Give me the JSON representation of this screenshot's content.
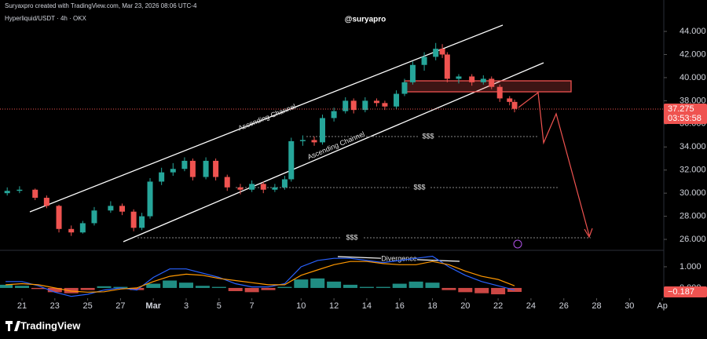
{
  "chart_data": [
    {
      "type": "candlestick",
      "title": "Hyperliquid/USDT · 4h · OKX",
      "subtitle": "Suryaxpro created with TradingView.com, Mar 23, 2026 08:06 UTC-4",
      "watermark": "@suryapro",
      "brand": "TradingView",
      "annotations": [
        "Ascending Channel",
        "Ascending Channel",
        "$$$",
        "$$$",
        "$$$",
        "Divergence"
      ],
      "up_color": "#26a69a",
      "down_color": "#ef5350",
      "x": [
        -0.9,
        -0.15,
        0.8,
        1.5,
        2.25,
        3.0,
        3.7,
        4.4,
        5.4,
        6.1,
        6.8,
        7.3,
        7.8,
        8.5,
        9.2,
        9.9,
        10.4,
        11.2,
        11.8,
        12.5,
        13.3,
        14.0,
        14.7,
        15.4,
        16.0,
        16.4,
        17.1,
        17.8,
        18.3,
        19.0,
        19.7,
        20.2,
        20.9,
        21.6,
        22.1,
        22.8,
        23.3,
        23.8,
        24.5,
        25.2,
        25.6,
        25.9,
        26.6,
        27.4,
        28.1,
        28.6,
        29.1,
        29.7,
        30.0
      ],
      "open": [
        30.0,
        30.2,
        30.3,
        29.6,
        28.9,
        26.9,
        26.6,
        27.4,
        28.5,
        28.9,
        28.4,
        27.0,
        28.0,
        31.0,
        31.8,
        32.1,
        32.8,
        31.4,
        32.8,
        31.4,
        30.5,
        30.3,
        30.8,
        30.3,
        30.5,
        31.2,
        34.5,
        34.6,
        34.4,
        36.5,
        37.1,
        38.0,
        37.2,
        38.0,
        37.8,
        37.5,
        38.6,
        39.6,
        41.1,
        41.8,
        42.5,
        42.0,
        39.9,
        40.1,
        39.6,
        39.9,
        39.2,
        38.2,
        37.9
      ],
      "high": [
        30.5,
        30.6,
        30.4,
        29.8,
        29.0,
        27.2,
        27.6,
        28.8,
        29.3,
        29.1,
        28.6,
        28.3,
        31.3,
        32.2,
        32.6,
        33.1,
        33.0,
        33.1,
        33.0,
        31.6,
        30.8,
        31.1,
        31.0,
        30.8,
        31.5,
        34.8,
        35.0,
        34.9,
        36.8,
        37.4,
        38.3,
        38.2,
        38.3,
        38.2,
        38.0,
        38.9,
        39.9,
        41.4,
        42.2,
        43.0,
        42.9,
        42.2,
        40.3,
        40.3,
        40.2,
        40.1,
        39.4,
        38.4,
        38.1
      ],
      "low": [
        29.8,
        30.0,
        29.4,
        28.7,
        26.6,
        26.3,
        26.5,
        27.2,
        28.3,
        28.1,
        26.7,
        26.8,
        27.8,
        30.7,
        31.5,
        31.9,
        31.1,
        31.2,
        31.1,
        30.2,
        29.9,
        30.1,
        30.0,
        30.1,
        30.3,
        31.0,
        34.1,
        34.1,
        34.2,
        36.2,
        36.9,
        36.9,
        37.0,
        37.5,
        37.2,
        37.3,
        38.4,
        39.4,
        40.6,
        41.5,
        41.7,
        39.6,
        39.5,
        39.3,
        39.4,
        39.0,
        37.9,
        37.6,
        37.0
      ],
      "close": [
        30.2,
        30.3,
        29.6,
        28.9,
        26.9,
        26.6,
        27.4,
        28.5,
        28.9,
        28.4,
        27.0,
        28.0,
        31.0,
        31.8,
        32.1,
        32.8,
        31.4,
        32.8,
        31.4,
        30.5,
        30.3,
        30.8,
        30.3,
        30.5,
        31.2,
        34.5,
        34.6,
        34.4,
        36.5,
        37.1,
        38.0,
        37.2,
        38.0,
        37.8,
        37.5,
        38.6,
        39.6,
        41.1,
        41.8,
        42.5,
        42.0,
        39.9,
        40.1,
        39.6,
        39.9,
        39.2,
        38.2,
        37.9,
        37.3
      ],
      "last_price": {
        "value": 37.275,
        "label": "37.275"
      },
      "countdown": "03:53:58",
      "xlim": [
        -1.34,
        39.09
      ],
      "ylim": [
        25.12,
        46.04
      ],
      "yticks": [
        {
          "value": 26,
          "label": "26.000"
        },
        {
          "value": 28,
          "label": "28.000"
        },
        {
          "value": 30,
          "label": "30.000"
        },
        {
          "value": 32,
          "label": "32.000"
        },
        {
          "value": 34,
          "label": "34.000"
        },
        {
          "value": 36,
          "label": "36.000"
        },
        {
          "value": 38,
          "label": "38.000"
        },
        {
          "value": 40,
          "label": "40.000"
        },
        {
          "value": 42,
          "label": "42.000"
        },
        {
          "value": 44,
          "label": "44.000"
        }
      ],
      "xticks": [
        {
          "value": 0,
          "label": "21"
        },
        {
          "value": 2,
          "label": "23"
        },
        {
          "value": 4,
          "label": "25"
        },
        {
          "value": 6,
          "label": "27"
        },
        {
          "value": 8,
          "label": "Mar"
        },
        {
          "value": 10,
          "label": "3"
        },
        {
          "value": 12,
          "label": "5"
        },
        {
          "value": 14,
          "label": "7"
        },
        {
          "value": 17,
          "label": "10"
        },
        {
          "value": 19,
          "label": "12"
        },
        {
          "value": 21,
          "label": "14"
        },
        {
          "value": 23,
          "label": "16"
        },
        {
          "value": 25,
          "label": "18"
        },
        {
          "value": 27,
          "label": "20"
        },
        {
          "value": 29,
          "label": "22"
        },
        {
          "value": 31,
          "label": "24"
        },
        {
          "value": 33,
          "label": "26"
        },
        {
          "value": 35,
          "label": "28"
        },
        {
          "value": 37,
          "label": "30"
        },
        {
          "value": 39,
          "label": "Ap"
        }
      ]
    },
    {
      "type": "oscillator",
      "x": [
        -1,
        0,
        1,
        2,
        3,
        4,
        5,
        6,
        7,
        8,
        9,
        10,
        11,
        12,
        13,
        14,
        15,
        16,
        17,
        18,
        19,
        20,
        21,
        22,
        23,
        24,
        25,
        26,
        27,
        28,
        29,
        30
      ],
      "series": [
        {
          "type": "bar",
          "color": "#26a69a",
          "negative_color": "#ef5350",
          "values": [
            0.15,
            0.1,
            -0.05,
            -0.2,
            -0.25,
            -0.1,
            0.08,
            0.05,
            -0.1,
            0.2,
            0.35,
            0.25,
            0.1,
            0.05,
            -0.15,
            -0.2,
            -0.1,
            0.05,
            0.4,
            0.45,
            0.3,
            0.15,
            0.05,
            0.05,
            0.2,
            0.3,
            0.25,
            -0.1,
            -0.2,
            -0.25,
            -0.3,
            -0.187
          ]
        },
        {
          "type": "line",
          "color": "#2962ff",
          "values": [
            0.3,
            0.3,
            0.1,
            -0.2,
            -0.4,
            -0.3,
            -0.1,
            0,
            -0.1,
            0.5,
            0.9,
            0.9,
            0.7,
            0.5,
            0.2,
            0.05,
            0.05,
            0.2,
            1.0,
            1.3,
            1.4,
            1.4,
            1.3,
            1.2,
            1.3,
            1.4,
            1.5,
            1.0,
            0.6,
            0.3,
            0.1,
            -0.1
          ]
        },
        {
          "type": "line",
          "color": "#ff9800",
          "values": [
            0.15,
            0.2,
            0.15,
            0,
            -0.15,
            -0.2,
            -0.18,
            -0.05,
            0,
            0.3,
            0.55,
            0.65,
            0.6,
            0.45,
            0.35,
            0.25,
            0.15,
            0.15,
            0.6,
            0.85,
            1.1,
            1.25,
            1.25,
            1.15,
            1.1,
            1.1,
            1.25,
            1.1,
            0.8,
            0.55,
            0.4,
            0.1
          ]
        }
      ],
      "last_value": {
        "value": -0.187,
        "label": "−0.187"
      },
      "xlim": [
        -1.34,
        39.09
      ],
      "ylim": [
        -0.41,
        1.74
      ],
      "yticks": [
        {
          "value": 0,
          "label": "0.000"
        },
        {
          "value": 1,
          "label": "1.000"
        }
      ]
    }
  ]
}
